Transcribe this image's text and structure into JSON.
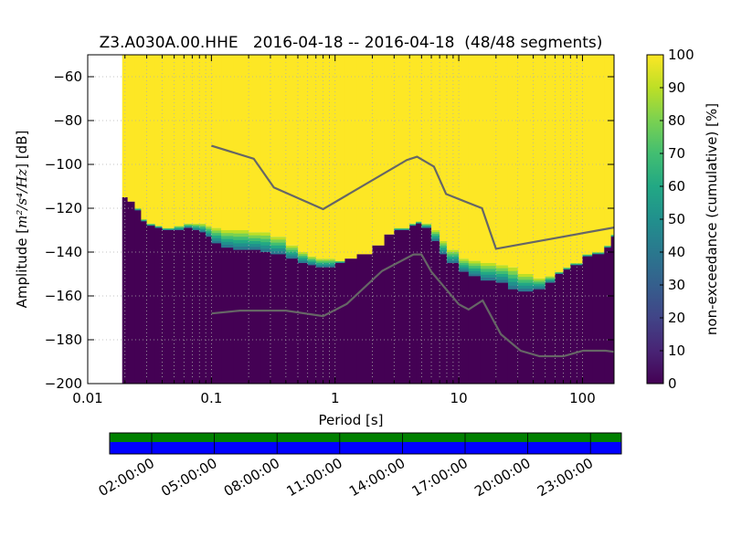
{
  "chart_data": {
    "type": "heatmap",
    "title": "Z3.A030A.00.HHE   2016-04-18 -- 2016-04-18  (48/48 segments)",
    "xlabel": "Period [s]",
    "ylabel_prefix": "Amplitude [",
    "ylabel_math": "m²/s⁴/Hz",
    "ylabel_suffix": "] [dB]",
    "x_scale": "log",
    "xlim": [
      0.01,
      180
    ],
    "ylim": [
      -200,
      -50
    ],
    "x_ticks": [
      0.01,
      0.1,
      1,
      10,
      100
    ],
    "x_tick_labels": [
      "0.01",
      "0.1",
      "1",
      "10",
      "100"
    ],
    "y_ticks": [
      -200,
      -180,
      -160,
      -140,
      -120,
      -100,
      -80,
      -60
    ],
    "y_tick_labels": [
      "−200",
      "−180",
      "−160",
      "−140",
      "−120",
      "−100",
      "−80",
      "−60"
    ],
    "grid": true,
    "colorbar": {
      "label": "non-exceedance (cumulative) [%]",
      "range": [
        0,
        100
      ],
      "ticks": [
        0,
        10,
        20,
        30,
        40,
        50,
        60,
        70,
        80,
        90,
        100
      ],
      "tick_labels": [
        "0",
        "10",
        "20",
        "30",
        "40",
        "50",
        "60",
        "70",
        "80",
        "90",
        "100"
      ],
      "colormap": "viridis"
    },
    "data_period_start": 0.019,
    "psd_bands": [
      [
        0.019,
        -115,
        -115
      ],
      [
        0.021,
        -117,
        -117
      ],
      [
        0.024,
        -121,
        -120
      ],
      [
        0.027,
        -126,
        -125
      ],
      [
        0.03,
        -128,
        -127
      ],
      [
        0.035,
        -129,
        -128
      ],
      [
        0.04,
        -130,
        -129
      ],
      [
        0.05,
        -130,
        -128
      ],
      [
        0.06,
        -129,
        -127
      ],
      [
        0.07,
        -130,
        -127
      ],
      [
        0.08,
        -131,
        -127
      ],
      [
        0.09,
        -133,
        -128
      ],
      [
        0.1,
        -136,
        -129
      ],
      [
        0.12,
        -138,
        -130
      ],
      [
        0.15,
        -139,
        -130
      ],
      [
        0.2,
        -139,
        -131
      ],
      [
        0.25,
        -140,
        -131
      ],
      [
        0.3,
        -141,
        -133
      ],
      [
        0.4,
        -143,
        -137
      ],
      [
        0.5,
        -145,
        -140
      ],
      [
        0.6,
        -146,
        -142
      ],
      [
        0.7,
        -147,
        -143
      ],
      [
        0.8,
        -147,
        -143
      ],
      [
        1,
        -145,
        -144
      ],
      [
        1.2,
        -143,
        -143
      ],
      [
        1.5,
        -141,
        -141
      ],
      [
        2,
        -137,
        -137
      ],
      [
        2.5,
        -132,
        -132
      ],
      [
        3,
        -130,
        -129
      ],
      [
        4,
        -128,
        -127
      ],
      [
        4.5,
        -127,
        -126
      ],
      [
        5,
        -129,
        -127
      ],
      [
        6,
        -135,
        -130
      ],
      [
        7,
        -141,
        -135
      ],
      [
        8,
        -145,
        -139
      ],
      [
        10,
        -149,
        -143
      ],
      [
        12,
        -151,
        -144
      ],
      [
        15,
        -153,
        -145
      ],
      [
        20,
        -154,
        -146
      ],
      [
        25,
        -157,
        -147
      ],
      [
        30,
        -158,
        -150
      ],
      [
        40,
        -157,
        -152
      ],
      [
        50,
        -154,
        -151
      ],
      [
        60,
        -150,
        -149
      ],
      [
        70,
        -148,
        -147
      ],
      [
        80,
        -146,
        -145
      ],
      [
        100,
        -142,
        -141
      ],
      [
        120,
        -141,
        -140
      ],
      [
        150,
        -138,
        -137
      ],
      [
        170,
        -133,
        -132
      ]
    ],
    "noise_model_high": {
      "x": [
        0.1,
        0.22,
        0.32,
        0.8,
        3.8,
        4.6,
        6.3,
        7.9,
        15.4,
        20,
        180
      ],
      "y": [
        -91.5,
        -97.4,
        -110.5,
        -120.4,
        -98,
        -96.5,
        -101,
        -113.5,
        -120,
        -138.5,
        -128.8
      ]
    },
    "noise_model_low": {
      "x": [
        0.1,
        0.17,
        0.4,
        0.8,
        1.24,
        2.4,
        4.3,
        5,
        6,
        10,
        12,
        15.6,
        21.9,
        31.6,
        45,
        70,
        101,
        154,
        180
      ],
      "y": [
        -168,
        -166.7,
        -166.7,
        -169.2,
        -163.7,
        -148.6,
        -141.1,
        -141.1,
        -149,
        -163.8,
        -166.2,
        -162.1,
        -177.5,
        -185,
        -187.5,
        -187.5,
        -185,
        -185,
        -185.5
      ]
    }
  },
  "timeline": {
    "tick_labels": [
      "02:00:00",
      "05:00:00",
      "08:00:00",
      "11:00:00",
      "14:00:00",
      "17:00:00",
      "20:00:00",
      "23:00:00"
    ],
    "top_color": "#008000",
    "bottom_color": "#0000ff"
  }
}
